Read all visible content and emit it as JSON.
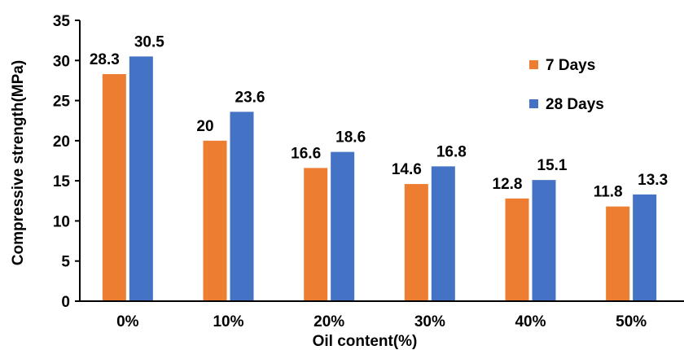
{
  "chart_data": {
    "type": "bar",
    "title": "",
    "xlabel": "Oil content(%)",
    "ylabel": "Compressive strength(MPa)",
    "categories": [
      "0%",
      "10%",
      "20%",
      "30%",
      "40%",
      "50%"
    ],
    "ylim": [
      0,
      35
    ],
    "yticks": [
      0,
      5,
      10,
      15,
      20,
      25,
      30,
      35
    ],
    "grid": false,
    "legend_position": "top-right",
    "series": [
      {
        "name": "7 Days",
        "color": "#ED7D31",
        "values": [
          28.3,
          20,
          16.6,
          14.6,
          12.8,
          11.8
        ],
        "labels": [
          "28.3",
          "20",
          "16.6",
          "14.6",
          "12.8",
          "11.8"
        ]
      },
      {
        "name": "28 Days",
        "color": "#4472C4",
        "values": [
          30.5,
          23.6,
          18.6,
          16.8,
          15.1,
          13.3
        ],
        "labels": [
          "30.5",
          "23.6",
          "18.6",
          "16.8",
          "15.1",
          "13.3"
        ]
      }
    ]
  }
}
